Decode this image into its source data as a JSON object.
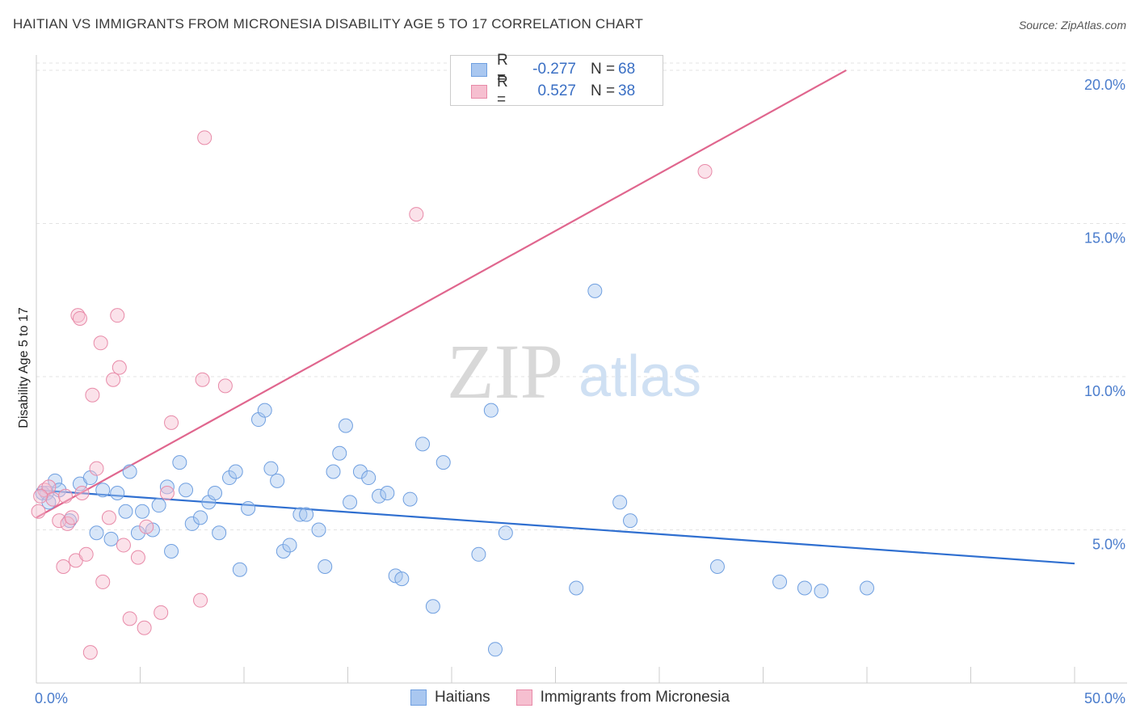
{
  "title": "HAITIAN VS IMMIGRANTS FROM MICRONESIA DISABILITY AGE 5 TO 17 CORRELATION CHART",
  "source": "Source: ZipAtlas.com",
  "watermark": {
    "zip": "ZIP",
    "atlas": "atlas"
  },
  "legend_stats": [
    {
      "r_label": "R =",
      "r_value": "-0.277",
      "n_label": "N =",
      "n_value": "68",
      "color": "#a9c7f0",
      "border": "#6f9fe0"
    },
    {
      "r_label": "R =",
      "r_value": "0.527",
      "n_label": "N =",
      "n_value": "38",
      "color": "#f6bfd0",
      "border": "#e88aa8"
    }
  ],
  "bottom_legend": [
    {
      "label": "Haitians",
      "color": "#a9c7f0",
      "border": "#6f9fe0"
    },
    {
      "label": "Immigrants from Micronesia",
      "color": "#f6bfd0",
      "border": "#e88aa8"
    }
  ],
  "chart_data": {
    "type": "scatter",
    "title": "HAITIAN VS IMMIGRANTS FROM MICRONESIA DISABILITY AGE 5 TO 17 CORRELATION CHART",
    "xlabel": "",
    "ylabel": "Disability Age 5 to 17",
    "xlim": [
      0,
      50
    ],
    "ylim": [
      0,
      20.5
    ],
    "x_tick_labels": [
      "0.0%",
      "50.0%"
    ],
    "y_ticks": [
      5,
      10,
      15,
      20
    ],
    "y_tick_labels": [
      "5.0%",
      "10.0%",
      "15.0%",
      "20.0%"
    ],
    "grid": true,
    "legend_position": "top-center",
    "series": [
      {
        "name": "Haitians",
        "color": "#6f9fe0",
        "fill": "#a9c7f0",
        "trend": {
          "x": [
            0,
            50
          ],
          "y": [
            6.3,
            3.9
          ],
          "color": "#2f6fd0"
        },
        "points": [
          [
            0.5,
            6.2
          ],
          [
            0.9,
            6.6
          ],
          [
            1.1,
            6.3
          ],
          [
            2.1,
            6.5
          ],
          [
            2.6,
            6.7
          ],
          [
            2.9,
            4.9
          ],
          [
            3.2,
            6.3
          ],
          [
            3.6,
            4.7
          ],
          [
            3.9,
            6.2
          ],
          [
            4.3,
            5.6
          ],
          [
            4.5,
            6.9
          ],
          [
            4.9,
            4.9
          ],
          [
            5.1,
            5.6
          ],
          [
            5.6,
            5.0
          ],
          [
            5.9,
            5.8
          ],
          [
            6.3,
            6.4
          ],
          [
            6.5,
            4.3
          ],
          [
            6.9,
            7.2
          ],
          [
            7.2,
            6.3
          ],
          [
            7.5,
            5.2
          ],
          [
            7.9,
            5.4
          ],
          [
            8.3,
            5.9
          ],
          [
            8.6,
            6.2
          ],
          [
            8.8,
            4.9
          ],
          [
            9.3,
            6.7
          ],
          [
            9.6,
            6.9
          ],
          [
            9.8,
            3.7
          ],
          [
            10.2,
            5.7
          ],
          [
            10.7,
            8.6
          ],
          [
            11.0,
            8.9
          ],
          [
            11.3,
            7.0
          ],
          [
            11.6,
            6.6
          ],
          [
            11.9,
            4.3
          ],
          [
            12.2,
            4.5
          ],
          [
            12.7,
            5.5
          ],
          [
            13.0,
            5.5
          ],
          [
            13.6,
            5.0
          ],
          [
            13.9,
            3.8
          ],
          [
            14.3,
            6.9
          ],
          [
            14.6,
            7.5
          ],
          [
            14.9,
            8.4
          ],
          [
            15.1,
            5.9
          ],
          [
            15.6,
            6.9
          ],
          [
            16.0,
            6.7
          ],
          [
            16.5,
            6.1
          ],
          [
            16.9,
            6.2
          ],
          [
            17.3,
            3.5
          ],
          [
            17.6,
            3.4
          ],
          [
            18.0,
            6.0
          ],
          [
            18.6,
            7.8
          ],
          [
            19.1,
            2.5
          ],
          [
            19.6,
            7.2
          ],
          [
            21.3,
            4.2
          ],
          [
            21.9,
            8.9
          ],
          [
            22.1,
            1.1
          ],
          [
            22.6,
            4.9
          ],
          [
            26.0,
            3.1
          ],
          [
            26.9,
            12.8
          ],
          [
            28.1,
            5.9
          ],
          [
            28.6,
            5.3
          ],
          [
            32.8,
            3.8
          ],
          [
            35.8,
            3.3
          ],
          [
            37.0,
            3.1
          ],
          [
            37.8,
            3.0
          ],
          [
            40.0,
            3.1
          ],
          [
            0.3,
            6.2
          ],
          [
            1.6,
            5.3
          ],
          [
            0.6,
            5.9
          ]
        ]
      },
      {
        "name": "Immigrants from Micronesia",
        "color": "#e88aa8",
        "fill": "#f6bfd0",
        "trend": {
          "x": [
            0,
            39
          ],
          "y": [
            5.4,
            20.0
          ],
          "color": "#e0668e"
        },
        "points": [
          [
            0.1,
            5.6
          ],
          [
            0.4,
            6.3
          ],
          [
            0.6,
            6.4
          ],
          [
            0.8,
            6.0
          ],
          [
            1.1,
            5.3
          ],
          [
            1.3,
            3.8
          ],
          [
            1.5,
            5.2
          ],
          [
            1.7,
            5.4
          ],
          [
            1.9,
            4.0
          ],
          [
            2.0,
            12.0
          ],
          [
            2.1,
            11.9
          ],
          [
            2.2,
            6.2
          ],
          [
            2.4,
            4.2
          ],
          [
            2.6,
            1.0
          ],
          [
            2.7,
            9.4
          ],
          [
            2.9,
            7.0
          ],
          [
            3.1,
            11.1
          ],
          [
            3.2,
            3.3
          ],
          [
            3.5,
            5.4
          ],
          [
            3.7,
            9.9
          ],
          [
            3.9,
            12.0
          ],
          [
            4.0,
            10.3
          ],
          [
            4.2,
            4.5
          ],
          [
            4.5,
            2.1
          ],
          [
            4.9,
            4.1
          ],
          [
            5.2,
            1.8
          ],
          [
            5.3,
            5.1
          ],
          [
            6.0,
            2.3
          ],
          [
            6.3,
            6.2
          ],
          [
            6.5,
            8.5
          ],
          [
            7.9,
            2.7
          ],
          [
            8.0,
            9.9
          ],
          [
            8.1,
            17.8
          ],
          [
            9.1,
            9.7
          ],
          [
            18.3,
            15.3
          ],
          [
            32.2,
            16.7
          ],
          [
            0.2,
            6.1
          ],
          [
            1.4,
            6.1
          ]
        ]
      }
    ]
  }
}
